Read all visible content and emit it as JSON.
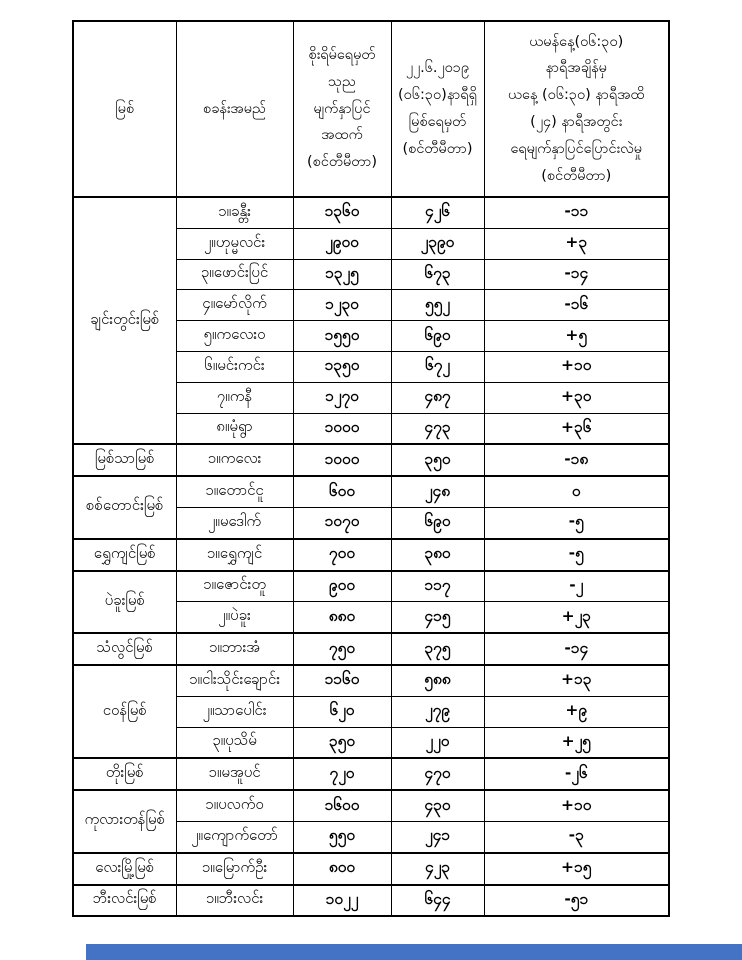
{
  "table": {
    "header": {
      "river": "မြစ်",
      "station": "စခန်းအမည်",
      "danger": "စိုးရိမ်ရေမှတ်\nသုည\nမျက်နှာပြင်\nအထက်\n(စင်တီမီတာ)",
      "current": "၂၂.၆.၂၀၁၉\n(၀၆:၃၀)နာရီရှိ\nမြစ်ရေမှတ်\n(စင်တီမီတာ)",
      "change": "ယမန်နေ့(၀၆:၃၀)\nနာရီအချိန်မှ\nယနေ့ (၀၆:၃၀) နာရီအထိ\n(၂၄) နာရီအတွင်း\nရေမျက်နှာပြင်ပြောင်းလဲမှု\n(စင်တီမီတာ)"
    },
    "groups": [
      {
        "river": "ချင်းတွင်းမြစ်",
        "stations": [
          {
            "name": "၁။ခန္တီး",
            "danger": "၁၃၆၀",
            "current": "၄၂၆",
            "change": "-၁၁"
          },
          {
            "name": "၂။ဟုမ္မလင်း",
            "danger": "၂၉၀၀",
            "current": "၂၃၉၀",
            "change": "+၃"
          },
          {
            "name": "၃။ဖောင်းပြင်",
            "danger": "၁၃၂၅",
            "current": "၆၇၃",
            "change": "-၁၄"
          },
          {
            "name": "၄။မော်လိုက်",
            "danger": "၁၂၃၀",
            "current": "၅၅၂",
            "change": "-၁၆"
          },
          {
            "name": "၅။ကလေးဝ",
            "danger": "၁၅၅၀",
            "current": "၆၉၀",
            "change": "+၅"
          },
          {
            "name": "၆။မင်းကင်း",
            "danger": "၁၃၅၀",
            "current": "၆၇၂",
            "change": "+၁၀"
          },
          {
            "name": "၇။ကနီ",
            "danger": "၁၂၇၀",
            "current": "၄၈၇",
            "change": "+၃၀"
          },
          {
            "name": "၈။မုံရွာ",
            "danger": "၁၀၀၀",
            "current": "၄၇၃",
            "change": "+၃၆"
          }
        ]
      },
      {
        "river": "မြစ်သာမြစ်",
        "stations": [
          {
            "name": "၁။ကလေး",
            "danger": "၁၀၀၀",
            "current": "၃၅၀",
            "change": "-၁၈"
          }
        ]
      },
      {
        "river": "စစ်တောင်းမြစ်",
        "stations": [
          {
            "name": "၁။တောင်ငူ",
            "danger": "၆၀၀",
            "current": "၂၄၈",
            "change": "၀"
          },
          {
            "name": "၂။မဒေါက်",
            "danger": "၁၀၇၀",
            "current": "၆၉၀",
            "change": "-၅"
          }
        ]
      },
      {
        "river": "ရွှေကျင်မြစ်",
        "stations": [
          {
            "name": "၁။ရွှေကျင်",
            "danger": "၇၀၀",
            "current": "၃၈၀",
            "change": "-၅"
          }
        ]
      },
      {
        "river": "ပဲခူးမြစ်",
        "stations": [
          {
            "name": "၁။ဇောင်းတူ",
            "danger": "၉၀၀",
            "current": "၁၁၇",
            "change": "-၂"
          },
          {
            "name": "၂။ပဲခူး",
            "danger": "၈၈၀",
            "current": "၄၁၅",
            "change": "+၂၃"
          }
        ]
      },
      {
        "river": "သံလွင်မြစ်",
        "stations": [
          {
            "name": "၁။ဘားအံ",
            "danger": "၇၅၀",
            "current": "၃၇၅",
            "change": "-၁၄"
          }
        ]
      },
      {
        "river": "ငဝန်မြစ်",
        "stations": [
          {
            "name": "၁။ငါးသိုင်းချောင်း",
            "danger": "၁၁၆၀",
            "current": "၅၈၈",
            "change": "+၁၃"
          },
          {
            "name": "၂။သာပေါင်း",
            "danger": "၆၂၀",
            "current": "၂၇၉",
            "change": "+၉"
          },
          {
            "name": "၃။ပုသိမ်",
            "danger": "၃၅၀",
            "current": "၂၂၀",
            "change": "+၂၅"
          }
        ]
      },
      {
        "river": "တိုးမြစ်",
        "stations": [
          {
            "name": "၁။မအူပင်",
            "danger": "၇၂၀",
            "current": "၄၇၀",
            "change": "-၂၆"
          }
        ]
      },
      {
        "river": "ကုလားတန်မြစ်",
        "stations": [
          {
            "name": "၁။ပလက်ဝ",
            "danger": "၁၆၀၀",
            "current": "၄၃၀",
            "change": "+၁၀"
          },
          {
            "name": "၂။ကျောက်တော်",
            "danger": "၅၅၀",
            "current": "၂၄၁",
            "change": "-၃"
          }
        ]
      },
      {
        "river": "လေးမြို့မြစ်",
        "stations": [
          {
            "name": "၁။မြောက်ဦး",
            "danger": "၈၀၀",
            "current": "၄၂၃",
            "change": "+၁၅"
          }
        ]
      },
      {
        "river": "ဘီးလင်းမြစ်",
        "stations": [
          {
            "name": "၁။ဘီးလင်း",
            "danger": "၁၀၂၂",
            "current": "၆၄၄",
            "change": "-၅၁"
          }
        ]
      }
    ]
  },
  "footer": {
    "bar_color": "#4472c4"
  }
}
